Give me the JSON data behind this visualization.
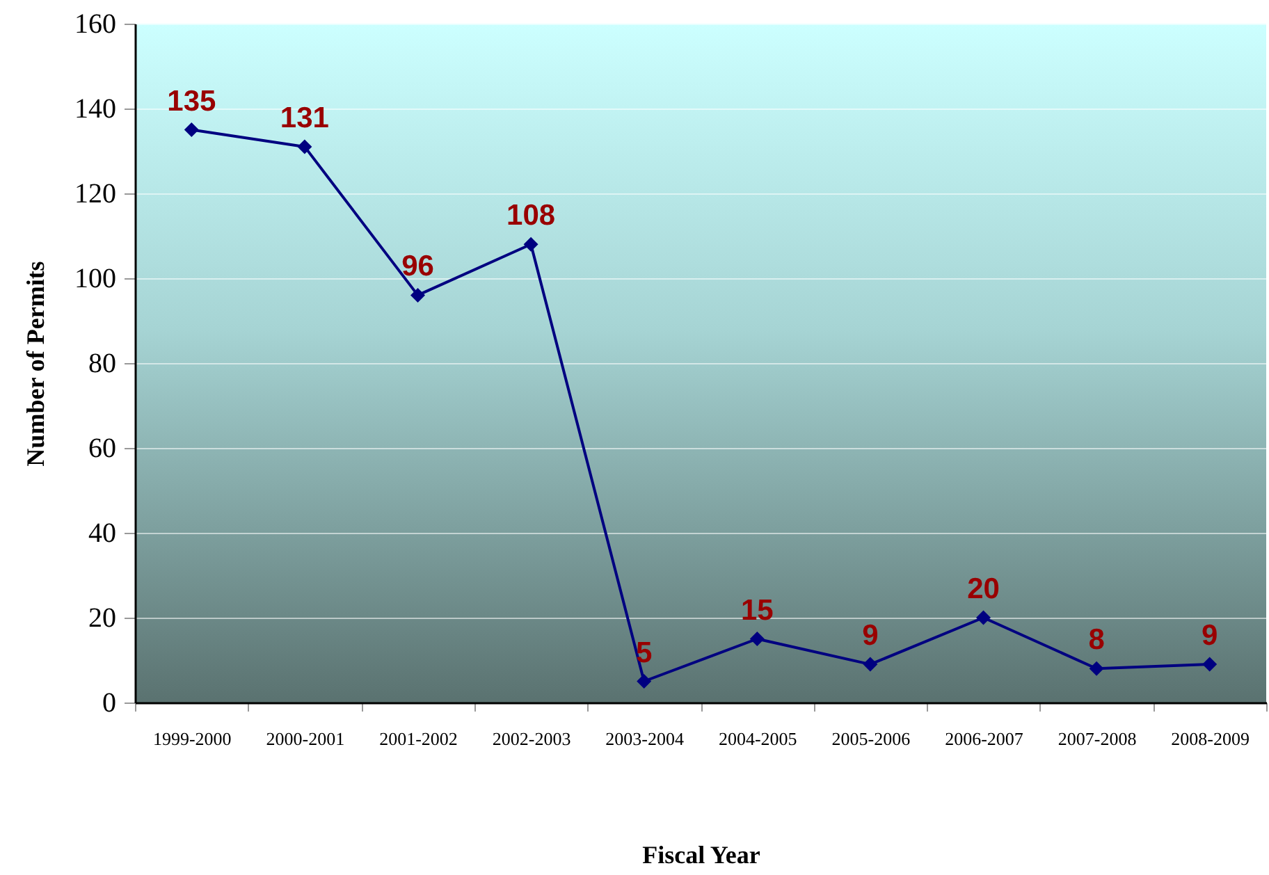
{
  "chart_data": {
    "type": "line",
    "xlabel": "Fiscal Year",
    "ylabel": "Number of Permits",
    "categories": [
      "1999-2000",
      "2000-2001",
      "2001-2002",
      "2002-2003",
      "2003-2004",
      "2004-2005",
      "2005-2006",
      "2006-2007",
      "2007-2008",
      "2008-2009"
    ],
    "series": [
      {
        "color": "#000080",
        "values": [
          135,
          131,
          96,
          108,
          5,
          15,
          9,
          20,
          8,
          9
        ]
      }
    ],
    "ylim": [
      0,
      160
    ],
    "yticks": [
      0,
      20,
      40,
      60,
      80,
      100,
      120,
      140,
      160
    ],
    "grid": "y",
    "marker": "diamond",
    "data_labels": true
  }
}
